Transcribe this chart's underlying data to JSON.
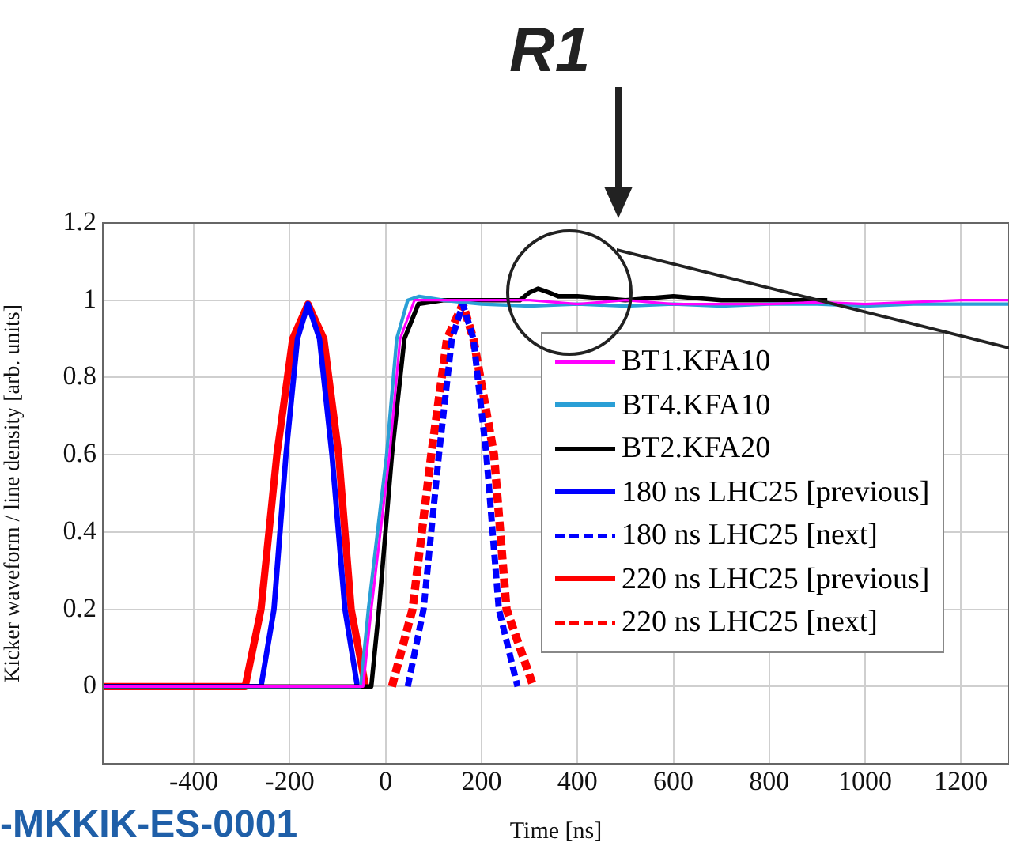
{
  "chart_data": {
    "type": "line",
    "xlabel": "Time [ns]",
    "ylabel": "Kicker waveform / line density [arb. units]",
    "xlim": [
      -590,
      1300
    ],
    "xticks": [
      -400,
      -200,
      0,
      200,
      400,
      600,
      800,
      1000,
      1200
    ],
    "ylim": [
      -0.2,
      1.2
    ],
    "yticks": [
      0,
      0.2,
      0.4,
      0.6,
      0.8,
      1,
      1.2
    ],
    "grid": true,
    "legend": "right",
    "marker": "none",
    "annotations": [
      "R1",
      "-MKKIK-ES-0001"
    ],
    "series": [
      {
        "name": "BT1.KFA10",
        "color": "#ff00ff",
        "line_style": "solid",
        "x": [
          -590,
          -47,
          -30,
          8,
          30,
          60,
          100,
          200,
          300,
          400,
          500,
          600,
          700,
          800,
          900,
          1000,
          1100,
          1200,
          1300
        ],
        "values": [
          0,
          0,
          0.2,
          0.6,
          0.9,
          1.0,
          1.0,
          1.0,
          1.0,
          0.99,
          1.0,
          0.99,
          0.99,
          0.99,
          0.995,
          0.99,
          0.995,
          1.0,
          1.0
        ]
      },
      {
        "name": "BT4.KFA10",
        "color": "#2a9fd6",
        "line_style": "solid",
        "x": [
          -590,
          -52,
          -36,
          2,
          23,
          46,
          70,
          120,
          200,
          300,
          400,
          500,
          600,
          700,
          800,
          900,
          1000,
          1100,
          1200,
          1300
        ],
        "values": [
          0,
          0,
          0.2,
          0.6,
          0.9,
          1.0,
          1.01,
          1.0,
          0.99,
          0.985,
          0.99,
          0.985,
          0.99,
          0.985,
          0.99,
          0.99,
          0.985,
          0.99,
          0.99,
          0.99
        ]
      },
      {
        "name": "BT2.KFA20",
        "color": "#000000",
        "line_style": "solid",
        "x": [
          -590,
          -30,
          -14,
          13,
          39,
          68,
          120,
          200,
          280,
          300,
          318,
          340,
          360,
          400,
          500,
          600,
          700,
          800,
          921
        ],
        "values": [
          0,
          0,
          0.2,
          0.6,
          0.9,
          0.99,
          1.0,
          1.0,
          1.0,
          1.02,
          1.03,
          1.02,
          1.01,
          1.01,
          1.0,
          1.01,
          1.0,
          1.0,
          1.0
        ]
      },
      {
        "name": "180 ns LHC25 [previous]",
        "color": "#0000ff",
        "line_style": "solid",
        "x": [
          -590,
          -260,
          -233,
          -208,
          -184,
          -162,
          -138,
          -112,
          -85,
          -59
        ],
        "values": [
          0,
          0,
          0.2,
          0.6,
          0.9,
          0.99,
          0.9,
          0.6,
          0.2,
          0
        ]
      },
      {
        "name": "180 ns LHC25 [next]",
        "color": "#0000ff",
        "line_style": "dashed",
        "x": [
          46,
          79,
          111,
          138,
          161,
          183,
          210,
          236,
          275
        ],
        "values": [
          0,
          0.2,
          0.6,
          0.9,
          0.99,
          0.9,
          0.6,
          0.2,
          0
        ]
      },
      {
        "name": "220 ns LHC25 [previous]",
        "color": "#ff0000",
        "line_style": "solid",
        "x": [
          -590,
          -293,
          -260,
          -227,
          -194,
          -162,
          -129,
          -98,
          -72,
          -42
        ],
        "values": [
          0,
          0,
          0.2,
          0.6,
          0.9,
          0.99,
          0.9,
          0.6,
          0.2,
          0
        ]
      },
      {
        "name": "220 ns LHC25 [next]",
        "color": "#ff0000",
        "line_style": "dashed",
        "x": [
          13,
          56,
          95,
          128,
          161,
          183,
          226,
          252,
          308
        ],
        "values": [
          0,
          0.2,
          0.6,
          0.9,
          0.99,
          0.9,
          0.6,
          0.2,
          0
        ]
      }
    ]
  }
}
